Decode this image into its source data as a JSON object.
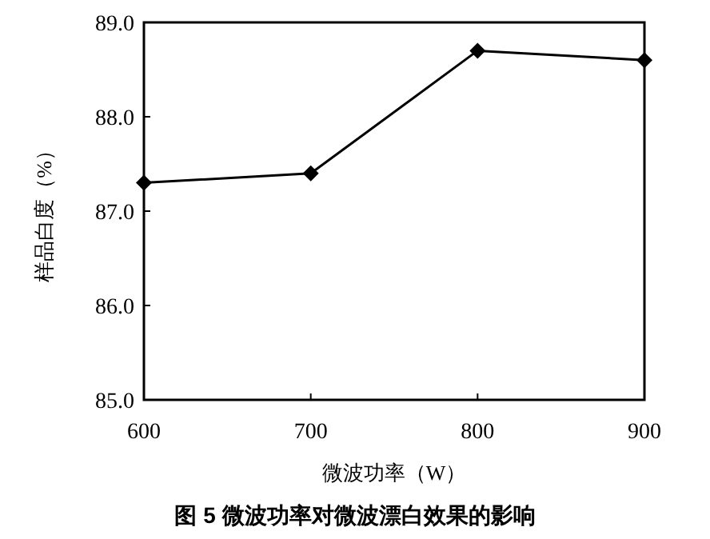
{
  "chart_data": {
    "type": "line",
    "xlabel": "微波功率（W）",
    "ylabel": "样品白度（%）",
    "annotations": [
      "图 5  微波功率对微波漂白效果的影响"
    ],
    "x": [
      600,
      700,
      800,
      900
    ],
    "series": [
      {
        "color": "#000000",
        "values": [
          87.3,
          87.4,
          88.7,
          88.6
        ]
      }
    ],
    "xlim": [
      600,
      900
    ],
    "xticks": [
      600,
      700,
      800,
      900
    ],
    "ylim": [
      85,
      89
    ],
    "yticks": [
      {
        "value": 85,
        "label": "85.0"
      },
      {
        "value": 86,
        "label": "86.0"
      },
      {
        "value": 87,
        "label": "87.0"
      },
      {
        "value": 88,
        "label": "88.0"
      },
      {
        "value": 89,
        "label": "89.0"
      }
    ],
    "grid": false,
    "marker": "diamond",
    "line_style": "solid"
  }
}
